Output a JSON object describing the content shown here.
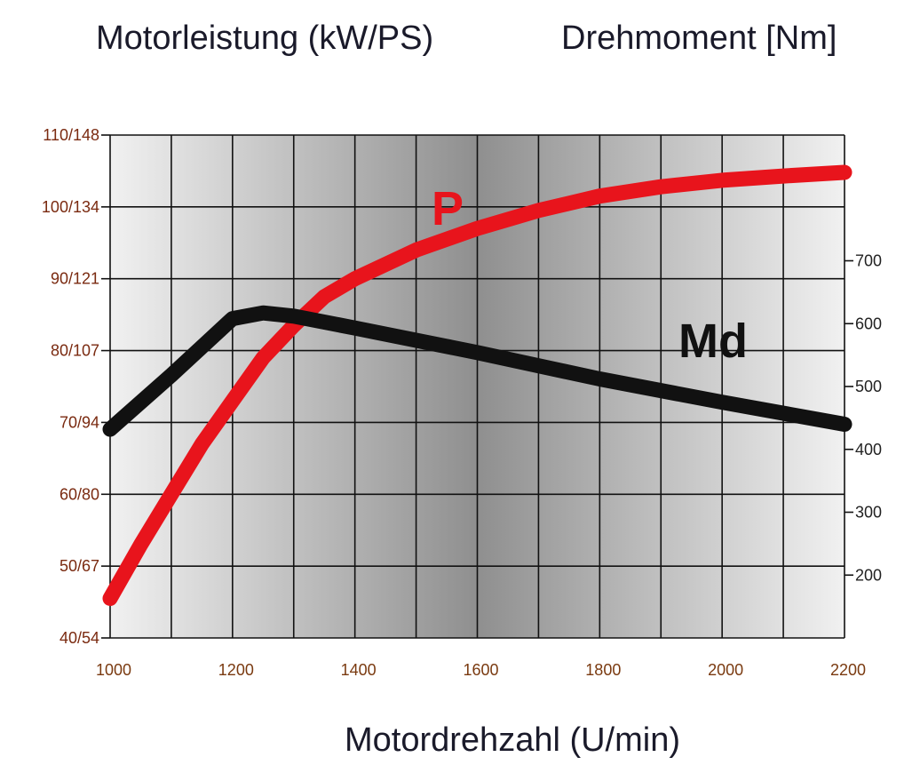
{
  "chart_data": {
    "type": "line",
    "title_left": "Motorleistung (kW/PS)",
    "title_right": "Drehmoment [Nm]",
    "xlabel": "Motordrehzahl (U/min)",
    "x_ticks": [
      "1000",
      "1200",
      "1400",
      "1600",
      "1800",
      "2000",
      "2200"
    ],
    "xlim": [
      1000,
      2200
    ],
    "y_left_ticks": [
      "40/54",
      "50/67",
      "60/80",
      "70/94",
      "80/107",
      "90/121",
      "100/134",
      "110/148"
    ],
    "y_left_lim": [
      40,
      110
    ],
    "y_right_ticks": [
      "200",
      "300",
      "400",
      "500",
      "600",
      "700"
    ],
    "y_right_lim": [
      100,
      900
    ],
    "grid": true,
    "colors": {
      "power": "#e8141c",
      "torque": "#111111",
      "left_tick_text": "#7a2a10",
      "right_tick_text": "#222222",
      "x_tick_text": "#7a3a10"
    },
    "series": [
      {
        "name": "P",
        "axis": "left",
        "x": [
          1000,
          1050,
          1100,
          1150,
          1200,
          1250,
          1300,
          1350,
          1400,
          1500,
          1600,
          1700,
          1800,
          1900,
          2000,
          2100,
          2200
        ],
        "values": [
          45.5,
          53,
          60,
          67,
          73,
          79,
          83.5,
          87.5,
          90,
          94,
          97,
          99.5,
          101.5,
          102.8,
          103.7,
          104.3,
          104.8
        ]
      },
      {
        "name": "Md",
        "axis": "right",
        "x": [
          1000,
          1100,
          1200,
          1250,
          1300,
          1400,
          1600,
          1800,
          2000,
          2200
        ],
        "values": [
          432,
          518,
          608,
          617,
          612,
          593,
          554,
          512,
          475,
          440
        ]
      }
    ]
  }
}
